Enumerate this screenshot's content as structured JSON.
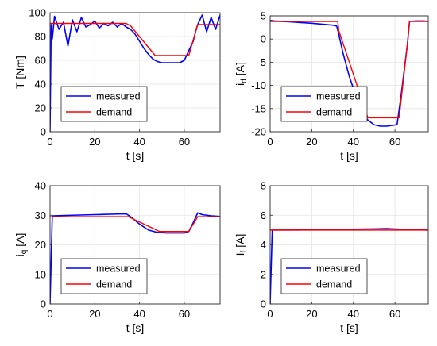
{
  "chart_data": [
    {
      "type": "line",
      "ylabel": "T [Nm]",
      "ylabel_main": "T [Nm]",
      "ylabel_sub": "",
      "ylabel_rest": "",
      "xlabel": "t [s]",
      "xlim": [
        0,
        76
      ],
      "ylim": [
        0,
        100
      ],
      "xticks": [
        0,
        20,
        40,
        60
      ],
      "yticks": [
        0,
        20,
        40,
        60,
        80,
        100
      ],
      "grid": true,
      "legend_position": "bottom-left",
      "series": [
        {
          "name": "measured",
          "color": "#0000ff",
          "x": [
            0,
            0.5,
            1,
            2,
            4,
            6,
            8,
            10,
            12,
            14,
            16,
            18,
            20,
            22,
            24,
            26,
            28,
            30,
            32,
            34,
            36,
            38,
            40,
            42,
            44,
            46,
            48,
            50,
            52,
            54,
            56,
            58,
            60,
            61,
            62,
            63,
            64,
            65,
            66,
            68,
            70,
            72,
            74,
            76
          ],
          "y": [
            0,
            90,
            78,
            97,
            86,
            92,
            72,
            94,
            84,
            96,
            88,
            90,
            93,
            87,
            91,
            89,
            92,
            88,
            91,
            88,
            86,
            82,
            76,
            70,
            65,
            61,
            59,
            58,
            58,
            58,
            58,
            58,
            60,
            64,
            68,
            72,
            76,
            84,
            90,
            98,
            84,
            96,
            86,
            98
          ]
        },
        {
          "name": "demand",
          "color": "#ff0000",
          "x": [
            0,
            1,
            34,
            36,
            47,
            62,
            66,
            76
          ],
          "y": [
            91,
            91,
            91,
            89,
            64,
            64,
            90,
            90
          ]
        }
      ]
    },
    {
      "type": "line",
      "ylabel": "i_d [A]",
      "ylabel_main": "i",
      "ylabel_sub": "d",
      "ylabel_rest": " [A]",
      "xlabel": "t [s]",
      "xlim": [
        0,
        76
      ],
      "ylim": [
        -20,
        5
      ],
      "xticks": [
        0,
        20,
        40,
        60
      ],
      "yticks": [
        -20,
        -15,
        -10,
        -5,
        0,
        5
      ],
      "grid": true,
      "legend_position": "bottom-left",
      "series": [
        {
          "name": "measured",
          "color": "#0000ff",
          "x": [
            0,
            2,
            10,
            20,
            30,
            32,
            33,
            35,
            38,
            41,
            44,
            47,
            50,
            53,
            56,
            59,
            61,
            63,
            66,
            67,
            70,
            74,
            76
          ],
          "y": [
            4.0,
            3.9,
            3.7,
            3.4,
            3.0,
            2.8,
            1.0,
            -3,
            -8,
            -12,
            -15.5,
            -17.5,
            -18.5,
            -18.8,
            -18.8,
            -18.6,
            -18.5,
            -12,
            -1,
            3.8,
            3.9,
            3.9,
            3.8
          ]
        },
        {
          "name": "demand",
          "color": "#ff0000",
          "x": [
            0,
            32.5,
            33,
            47,
            62,
            66,
            67,
            76
          ],
          "y": [
            3.8,
            3.8,
            1.8,
            -17,
            -17,
            -1,
            3.8,
            3.8
          ]
        }
      ]
    },
    {
      "type": "line",
      "ylabel": "i_q [A]",
      "ylabel_main": "i",
      "ylabel_sub": "q",
      "ylabel_rest": " [A]",
      "xlabel": "t [s]",
      "xlim": [
        0,
        76
      ],
      "ylim": [
        0,
        40
      ],
      "xticks": [
        0,
        20,
        40,
        60
      ],
      "yticks": [
        0,
        10,
        20,
        30,
        40
      ],
      "grid": true,
      "legend_position": "bottom-left",
      "series": [
        {
          "name": "measured",
          "color": "#0000ff",
          "x": [
            0,
            1,
            10,
            20,
            30,
            34,
            36,
            40,
            44,
            48,
            52,
            56,
            60,
            62,
            64,
            66,
            68,
            72,
            76
          ],
          "y": [
            0,
            29.8,
            30.0,
            30.2,
            30.4,
            30.5,
            29.5,
            27.0,
            25.0,
            24.2,
            24.0,
            24.0,
            24.0,
            24.5,
            27.5,
            30.8,
            30.2,
            29.8,
            29.6
          ]
        },
        {
          "name": "demand",
          "color": "#ff0000",
          "x": [
            0,
            1,
            35,
            49,
            62,
            66,
            76
          ],
          "y": [
            29.5,
            29.5,
            29.5,
            24.5,
            24.5,
            29.5,
            29.5
          ]
        }
      ]
    },
    {
      "type": "line",
      "ylabel": "I_f [A]",
      "ylabel_main": "I",
      "ylabel_sub": "f",
      "ylabel_rest": " [A]",
      "xlabel": "t [s]",
      "xlim": [
        0,
        76
      ],
      "ylim": [
        0,
        8
      ],
      "xticks": [
        0,
        20,
        40,
        60
      ],
      "yticks": [
        0,
        2,
        4,
        6,
        8
      ],
      "grid": true,
      "legend_position": "bottom-left",
      "series": [
        {
          "name": "measured",
          "color": "#0000ff",
          "x": [
            0,
            1,
            10,
            20,
            30,
            40,
            50,
            56,
            60,
            66,
            70,
            76
          ],
          "y": [
            0,
            5.0,
            5.0,
            5.02,
            5.04,
            5.06,
            5.08,
            5.1,
            5.07,
            5.04,
            5.02,
            5.0
          ]
        },
        {
          "name": "demand",
          "color": "#ff0000",
          "x": [
            0,
            1,
            76
          ],
          "y": [
            5.0,
            5.0,
            5.0
          ]
        }
      ]
    }
  ]
}
